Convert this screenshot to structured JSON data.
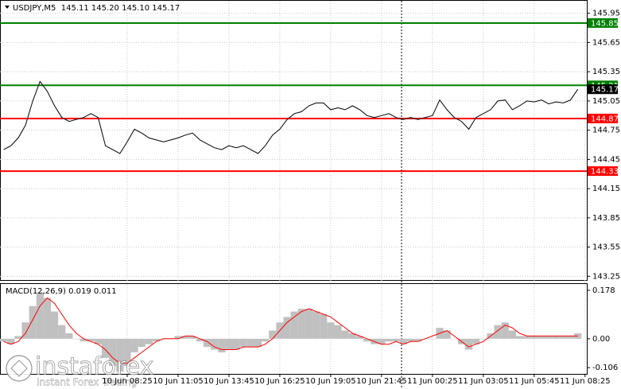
{
  "chart_data": [
    {
      "type": "line",
      "title": "USDJPY,M5  145.11 145.20 145.10 145.17",
      "categories": [
        null,
        null,
        null,
        null,
        null,
        null,
        null,
        null,
        null,
        null,
        null,
        null,
        null,
        null,
        null,
        null,
        null,
        "10 Jun 08:25",
        null,
        null,
        null,
        null,
        null,
        null,
        "10 Jun 11:05",
        null,
        null,
        null,
        null,
        null,
        null,
        "10 Jun 13:45",
        null,
        null,
        null,
        null,
        null,
        null,
        "10 Jun 16:25",
        null,
        null,
        null,
        null,
        null,
        null,
        "10 Jun 19:05",
        null,
        null,
        null,
        null,
        null,
        null,
        "10 Jun 21:45",
        null,
        null,
        null,
        null,
        null,
        null,
        "11 Jun 00:25",
        null,
        null,
        null,
        null,
        null,
        null,
        "11 Jun 03:05",
        null,
        null,
        null,
        null,
        null,
        null,
        "11 Jun 05:45",
        null,
        null,
        null,
        null,
        null,
        null,
        "11 Jun 08:25"
      ],
      "values": [
        144.55,
        144.59,
        144.67,
        144.8,
        145.05,
        145.25,
        145.15,
        145.0,
        144.88,
        144.84,
        144.86,
        144.88,
        144.92,
        144.88,
        144.59,
        144.55,
        144.51,
        144.63,
        144.76,
        144.72,
        144.67,
        144.65,
        144.63,
        144.65,
        144.67,
        144.7,
        144.72,
        144.65,
        144.61,
        144.57,
        144.55,
        144.59,
        144.57,
        144.59,
        144.55,
        144.51,
        144.59,
        144.7,
        144.76,
        144.86,
        144.92,
        144.94,
        145.0,
        145.03,
        145.03,
        144.96,
        144.98,
        144.96,
        145.0,
        144.96,
        144.9,
        144.88,
        144.9,
        144.92,
        144.88,
        144.86,
        144.88,
        144.86,
        144.88,
        144.9,
        145.06,
        144.96,
        144.88,
        144.84,
        144.76,
        144.88,
        144.92,
        144.96,
        145.05,
        145.06,
        144.96,
        145.0,
        145.05,
        145.04,
        145.06,
        145.02,
        145.04,
        145.03,
        145.06,
        145.17,
        null
      ],
      "color": "#000000",
      "ylim": [
        143.22,
        146.07
      ],
      "yticks": [
        143.25,
        143.55,
        143.85,
        144.15,
        144.45,
        144.75,
        145.05,
        145.35,
        145.65,
        145.95
      ],
      "levels": [
        {
          "value": 145.85,
          "color": "#008000"
        },
        {
          "value": 145.21,
          "color": "#008000"
        },
        {
          "value": 144.87,
          "color": "#ff0000"
        },
        {
          "value": 144.33,
          "color": "#ff0000"
        }
      ],
      "grid": true
    },
    {
      "type": "macd",
      "title": "MACD(12,26,9) 0.019 0.011",
      "histogram": {
        "color": "#c0c0c0",
        "values": [
          -0.01,
          -0.02,
          0.01,
          0.06,
          0.12,
          0.17,
          0.15,
          0.1,
          0.05,
          0.02,
          0.0,
          -0.01,
          -0.01,
          -0.02,
          -0.07,
          -0.1,
          -0.12,
          -0.1,
          -0.05,
          -0.03,
          -0.02,
          -0.01,
          0.0,
          0.0,
          0.01,
          0.01,
          0.01,
          -0.01,
          -0.03,
          -0.04,
          -0.05,
          -0.04,
          -0.04,
          -0.03,
          -0.03,
          -0.03,
          -0.01,
          0.03,
          0.06,
          0.08,
          0.1,
          0.11,
          0.11,
          0.1,
          0.09,
          0.06,
          0.05,
          0.03,
          0.02,
          0.01,
          -0.01,
          -0.02,
          -0.02,
          -0.01,
          -0.01,
          -0.02,
          -0.01,
          -0.01,
          0.0,
          0.0,
          0.04,
          0.03,
          0.0,
          -0.02,
          -0.04,
          -0.02,
          0.0,
          0.02,
          0.05,
          0.06,
          0.03,
          0.01,
          0.01,
          0.01,
          0.01,
          0.01,
          0.01,
          0.01,
          0.01,
          0.02,
          null
        ]
      },
      "signal": {
        "color": "#ff0000",
        "values": [
          -0.01,
          -0.02,
          -0.01,
          0.02,
          0.07,
          0.12,
          0.15,
          0.13,
          0.09,
          0.05,
          0.02,
          0.0,
          -0.01,
          -0.02,
          -0.04,
          -0.07,
          -0.09,
          -0.09,
          -0.07,
          -0.05,
          -0.03,
          -0.01,
          0.0,
          0.0,
          0.0,
          0.01,
          0.01,
          0.0,
          -0.01,
          -0.03,
          -0.04,
          -0.04,
          -0.04,
          -0.03,
          -0.03,
          -0.03,
          -0.02,
          0.0,
          0.03,
          0.06,
          0.08,
          0.1,
          0.11,
          0.1,
          0.09,
          0.08,
          0.06,
          0.04,
          0.02,
          0.01,
          0.0,
          -0.01,
          -0.02,
          -0.02,
          -0.01,
          -0.02,
          -0.01,
          -0.01,
          0.0,
          0.01,
          0.02,
          0.03,
          0.01,
          -0.01,
          -0.03,
          -0.02,
          -0.01,
          0.01,
          0.03,
          0.05,
          0.04,
          0.02,
          0.01,
          0.01,
          0.01,
          0.01,
          0.01,
          0.01,
          0.01,
          0.01,
          null
        ]
      },
      "ylim": [
        -0.129,
        0.201
      ],
      "yticks": [
        -0.106,
        {
          "value": 0,
          "label": "0.00"
        },
        0.178
      ]
    }
  ],
  "watermark": {
    "brand": "instaforex",
    "tagline": "Instant Forex Trading"
  }
}
